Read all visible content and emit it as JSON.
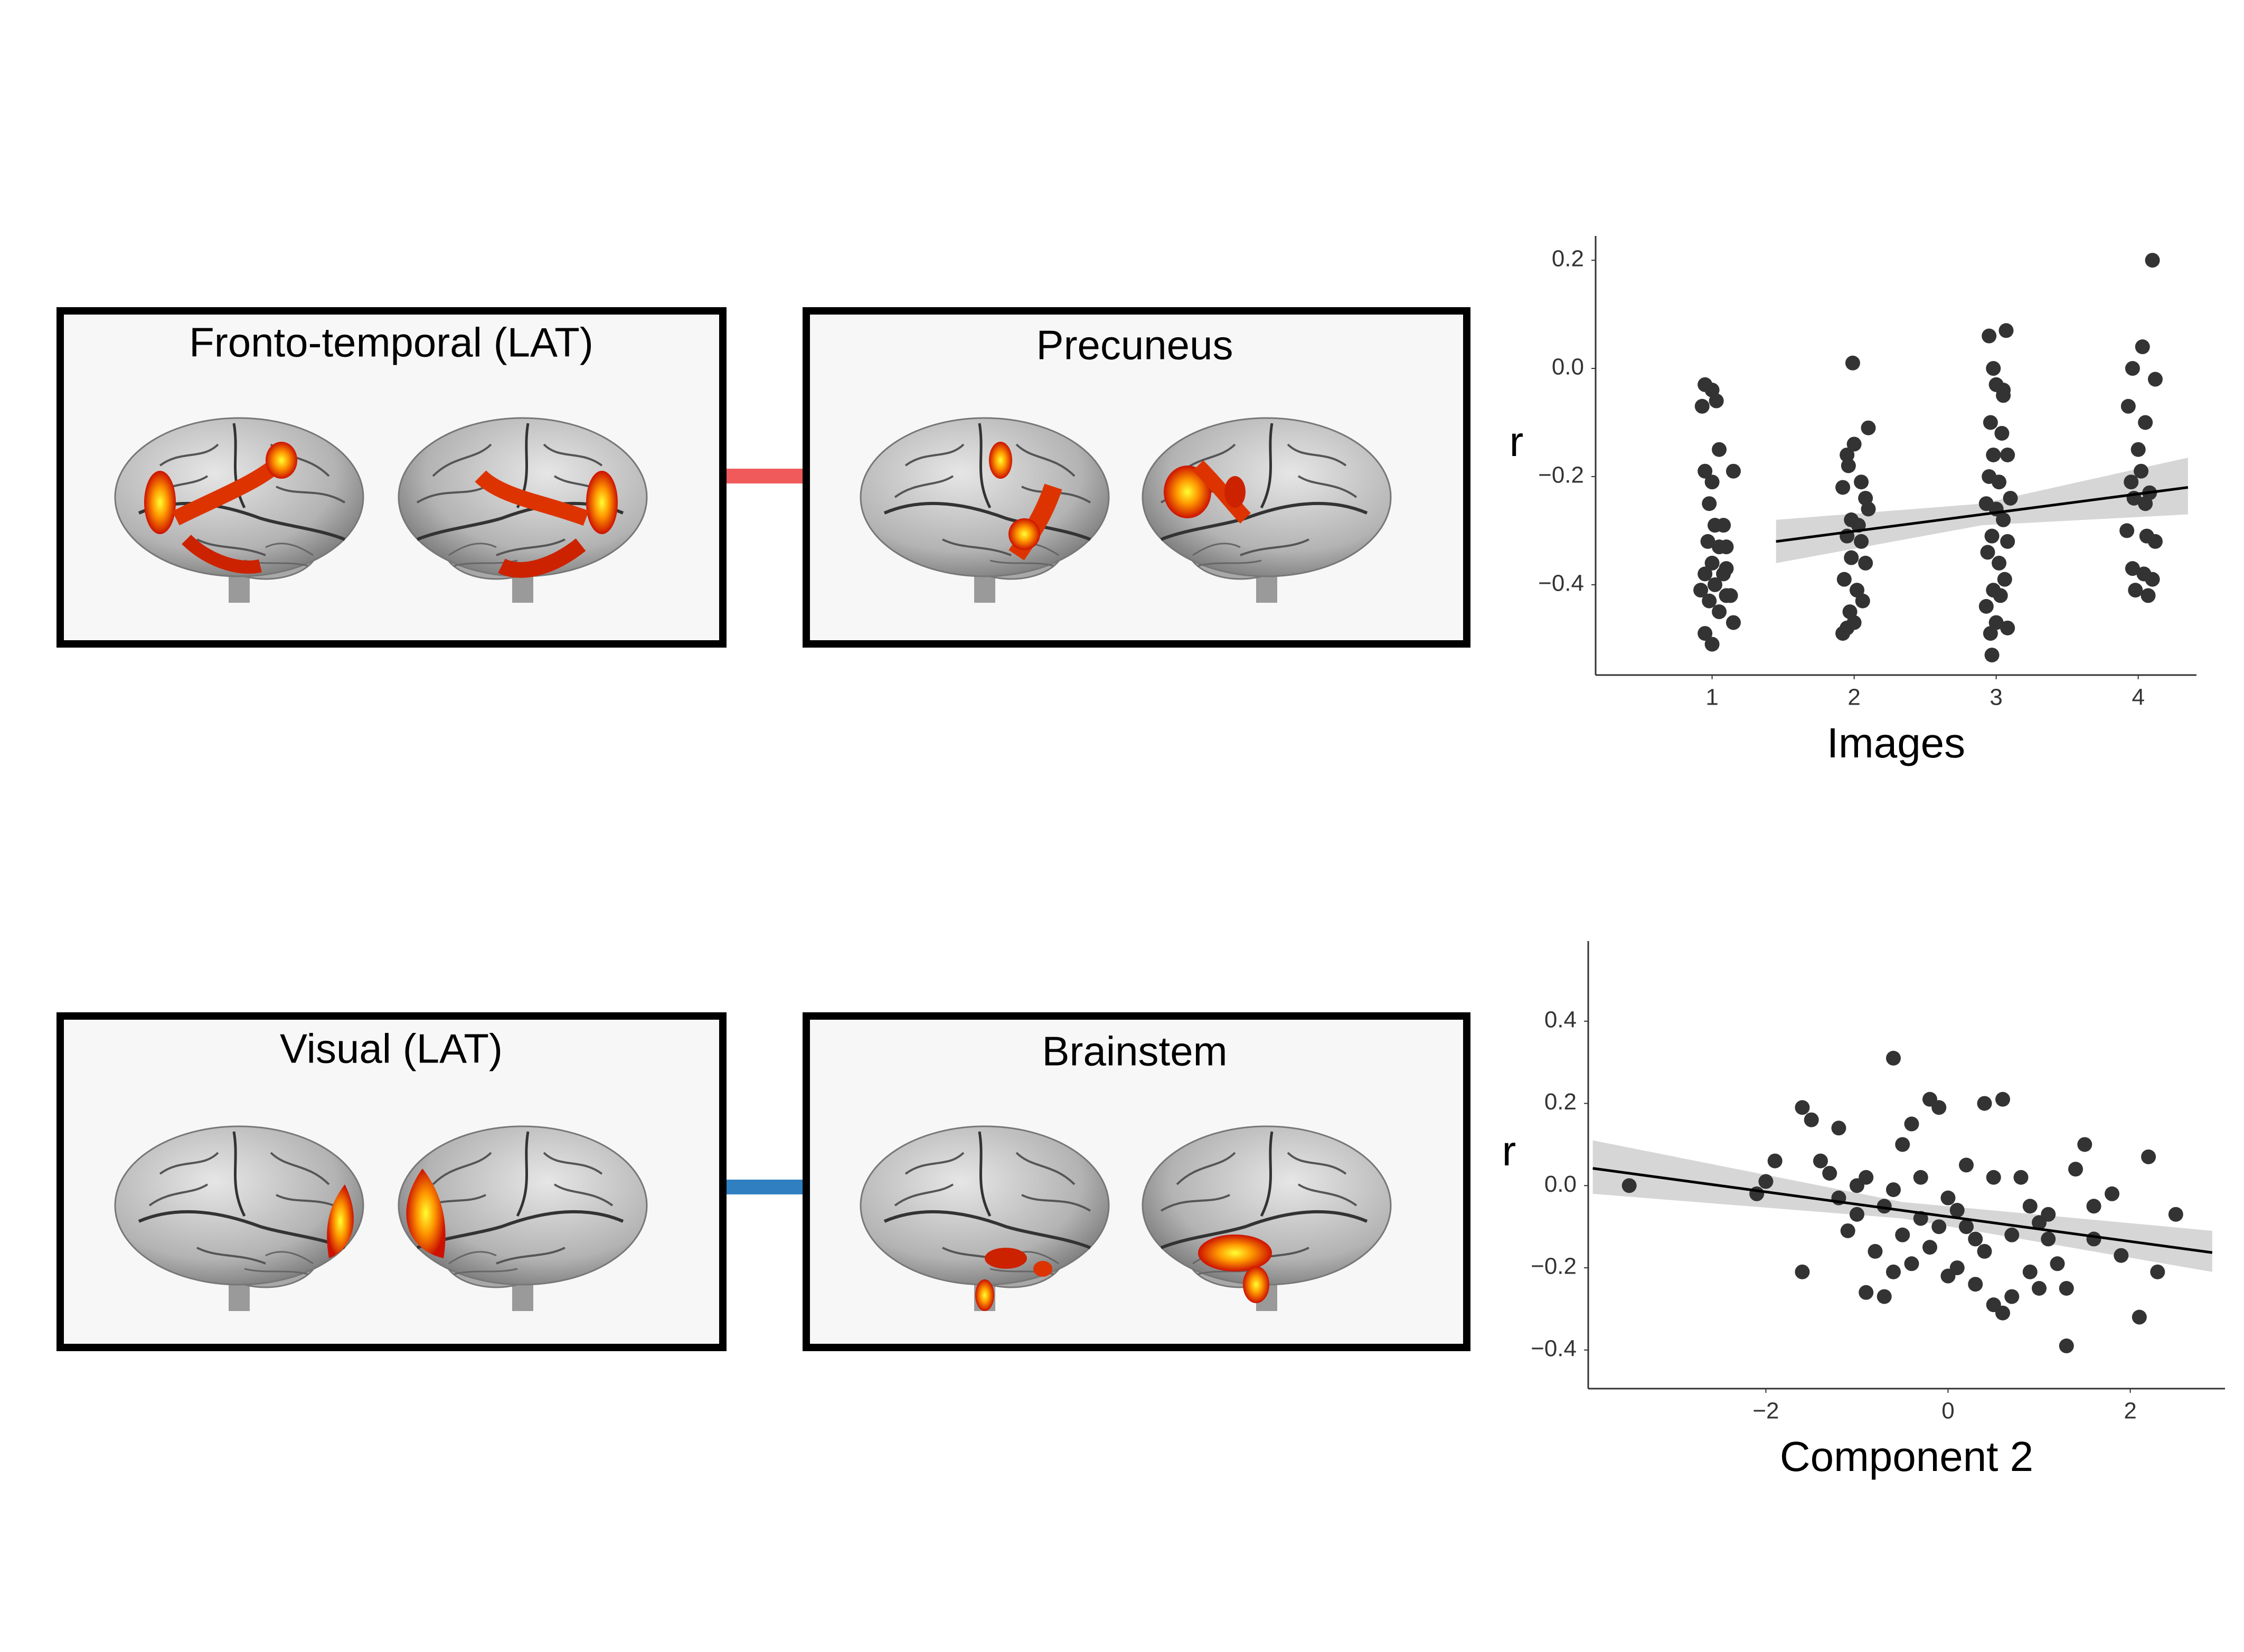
{
  "panels": [
    {
      "title": "Fronto-temporal (LAT)"
    },
    {
      "title": "Precuneus"
    },
    {
      "title": "Visual (LAT)"
    },
    {
      "title": "Brainstem"
    }
  ],
  "chart_data": [
    {
      "type": "scatter",
      "xlabel": "Images",
      "ylabel": "r",
      "color": "#333333",
      "fit_color": "#000000",
      "ci_color": "#cccccc",
      "x": [
        0.93,
        0.95,
        1.0,
        1.03,
        0.95,
        1.0,
        1.15,
        1.05,
        0.98,
        1.02,
        1.08,
        0.97,
        1.05,
        1.1,
        1.0,
        0.95,
        1.08,
        1.02,
        1.1,
        1.13,
        0.98,
        1.05,
        1.15,
        0.95,
        1.0,
        1.1,
        0.92,
        1.99,
        1.95,
        2.0,
        2.1,
        1.96,
        2.05,
        1.92,
        2.08,
        2.1,
        1.98,
        2.03,
        1.95,
        2.05,
        1.98,
        2.08,
        1.93,
        2.02,
        2.06,
        1.97,
        1.95,
        2.0,
        1.92,
        2.95,
        3.07,
        2.98,
        3.0,
        3.05,
        2.96,
        3.04,
        2.98,
        3.08,
        2.95,
        3.02,
        3.1,
        2.93,
        3.0,
        3.05,
        2.97,
        3.08,
        2.94,
        3.02,
        3.06,
        2.98,
        3.03,
        2.93,
        3.0,
        2.96,
        3.08,
        2.97,
        3.05,
        4.1,
        4.03,
        3.96,
        4.12,
        3.93,
        4.05,
        4.0,
        4.02,
        3.95,
        4.08,
        3.97,
        4.05,
        3.92,
        4.06,
        4.12,
        3.96,
        4.04,
        4.1,
        3.98,
        4.07
      ],
      "y": [
        -0.07,
        -0.03,
        -0.04,
        -0.06,
        -0.19,
        -0.21,
        -0.19,
        -0.15,
        -0.25,
        -0.29,
        -0.29,
        -0.32,
        -0.33,
        -0.33,
        -0.36,
        -0.38,
        -0.38,
        -0.4,
        -0.42,
        -0.42,
        -0.43,
        -0.45,
        -0.47,
        -0.49,
        -0.51,
        -0.37,
        -0.41,
        0.01,
        -0.16,
        -0.14,
        -0.11,
        -0.18,
        -0.21,
        -0.22,
        -0.24,
        -0.26,
        -0.28,
        -0.29,
        -0.31,
        -0.32,
        -0.35,
        -0.36,
        -0.39,
        -0.41,
        -0.43,
        -0.45,
        -0.48,
        -0.47,
        -0.49,
        0.06,
        0.07,
        0.0,
        -0.03,
        -0.05,
        -0.1,
        -0.12,
        -0.16,
        -0.16,
        -0.2,
        -0.21,
        -0.24,
        -0.25,
        -0.26,
        -0.28,
        -0.31,
        -0.32,
        -0.34,
        -0.36,
        -0.39,
        -0.41,
        -0.42,
        -0.44,
        -0.47,
        -0.49,
        -0.48,
        -0.53,
        -0.04,
        0.2,
        0.04,
        0.0,
        -0.02,
        -0.07,
        -0.1,
        -0.15,
        -0.19,
        -0.21,
        -0.23,
        -0.24,
        -0.25,
        -0.3,
        -0.31,
        -0.32,
        -0.37,
        -0.38,
        -0.39,
        -0.41,
        -0.42
      ],
      "fit": {
        "x": [
          1.45,
          4.35
        ],
        "y": [
          -0.32,
          -0.22
        ]
      },
      "ci": {
        "x": [
          1.45,
          2.9,
          4.35
        ],
        "lower": [
          -0.36,
          -0.29,
          -0.27
        ],
        "upper": [
          -0.28,
          -0.25,
          -0.165
        ]
      },
      "xlim": [
        0.18,
        4.41
      ],
      "ylim": [
        -0.567,
        0.245
      ],
      "xticks": [
        1,
        2,
        3,
        4
      ],
      "yticks": [
        {
          "value": -0.4,
          "label": "−0.4"
        },
        {
          "value": -0.2,
          "label": "−0.2"
        },
        {
          "value": 0,
          "label": "0.0"
        },
        0.2
      ]
    },
    {
      "type": "scatter",
      "xlabel": "Component 2",
      "ylabel": "r",
      "color": "#333333",
      "fit_color": "#000000",
      "ci_color": "#cccccc",
      "x": [
        -3.5,
        -2.1,
        -2.0,
        -1.9,
        -1.6,
        -1.5,
        -1.4,
        -1.6,
        -1.2,
        -0.9,
        -1.2,
        -1.0,
        -1.1,
        -0.8,
        -0.6,
        -0.5,
        -0.4,
        -0.2,
        -0.1,
        -0.3,
        -0.6,
        -0.7,
        -0.3,
        -0.5,
        -0.2,
        -0.6,
        -0.9,
        -0.7,
        0.0,
        0.1,
        0.2,
        0.3,
        0.4,
        0.1,
        0.3,
        0.5,
        0.6,
        0.7,
        0.4,
        0.6,
        0.5,
        0.8,
        0.9,
        1.0,
        1.1,
        1.2,
        1.3,
        1.0,
        1.4,
        1.5,
        1.6,
        1.3,
        1.9,
        2.1,
        2.2,
        2.3,
        2.5,
        1.8,
        0.2,
        -0.4,
        0.9,
        -1.3,
        1.1,
        0.7,
        -0.1,
        0.0,
        -1.0,
        1.6
      ],
      "y": [
        0.0,
        -0.02,
        0.01,
        0.06,
        0.19,
        0.16,
        0.06,
        -0.21,
        0.14,
        0.02,
        -0.03,
        -0.07,
        -0.11,
        -0.16,
        0.31,
        0.1,
        0.15,
        0.21,
        0.19,
        0.02,
        -0.01,
        -0.05,
        -0.08,
        -0.12,
        -0.15,
        -0.21,
        -0.26,
        -0.27,
        -0.03,
        -0.06,
        -0.1,
        -0.13,
        -0.16,
        -0.2,
        -0.24,
        -0.29,
        -0.31,
        -0.27,
        0.2,
        0.21,
        0.02,
        0.02,
        -0.05,
        -0.09,
        -0.13,
        -0.19,
        -0.25,
        -0.25,
        0.04,
        0.1,
        -0.13,
        -0.39,
        -0.17,
        -0.32,
        0.07,
        -0.21,
        -0.07,
        -0.02,
        0.05,
        -0.19,
        -0.21,
        0.03,
        -0.07,
        -0.12,
        -0.1,
        -0.22,
        0.0,
        -0.05
      ],
      "fit": {
        "x": [
          -3.9,
          2.9
        ],
        "y": [
          0.042,
          -0.163
        ]
      },
      "ci": {
        "x": [
          -3.9,
          -0.5,
          2.9
        ],
        "lower": [
          -0.02,
          -0.08,
          -0.21
        ],
        "upper": [
          0.11,
          -0.04,
          -0.11
        ]
      },
      "xlim": [
        -3.95,
        3.04
      ],
      "ylim": [
        -0.494,
        0.595
      ],
      "xticks": [
        {
          "value": -2,
          "label": "−2"
        },
        0,
        2
      ],
      "yticks": [
        {
          "value": -0.4,
          "label": "−0.4"
        },
        {
          "value": -0.2,
          "label": "−0.2"
        },
        {
          "value": 0,
          "label": "0.0"
        },
        0.2,
        0.4
      ]
    }
  ]
}
